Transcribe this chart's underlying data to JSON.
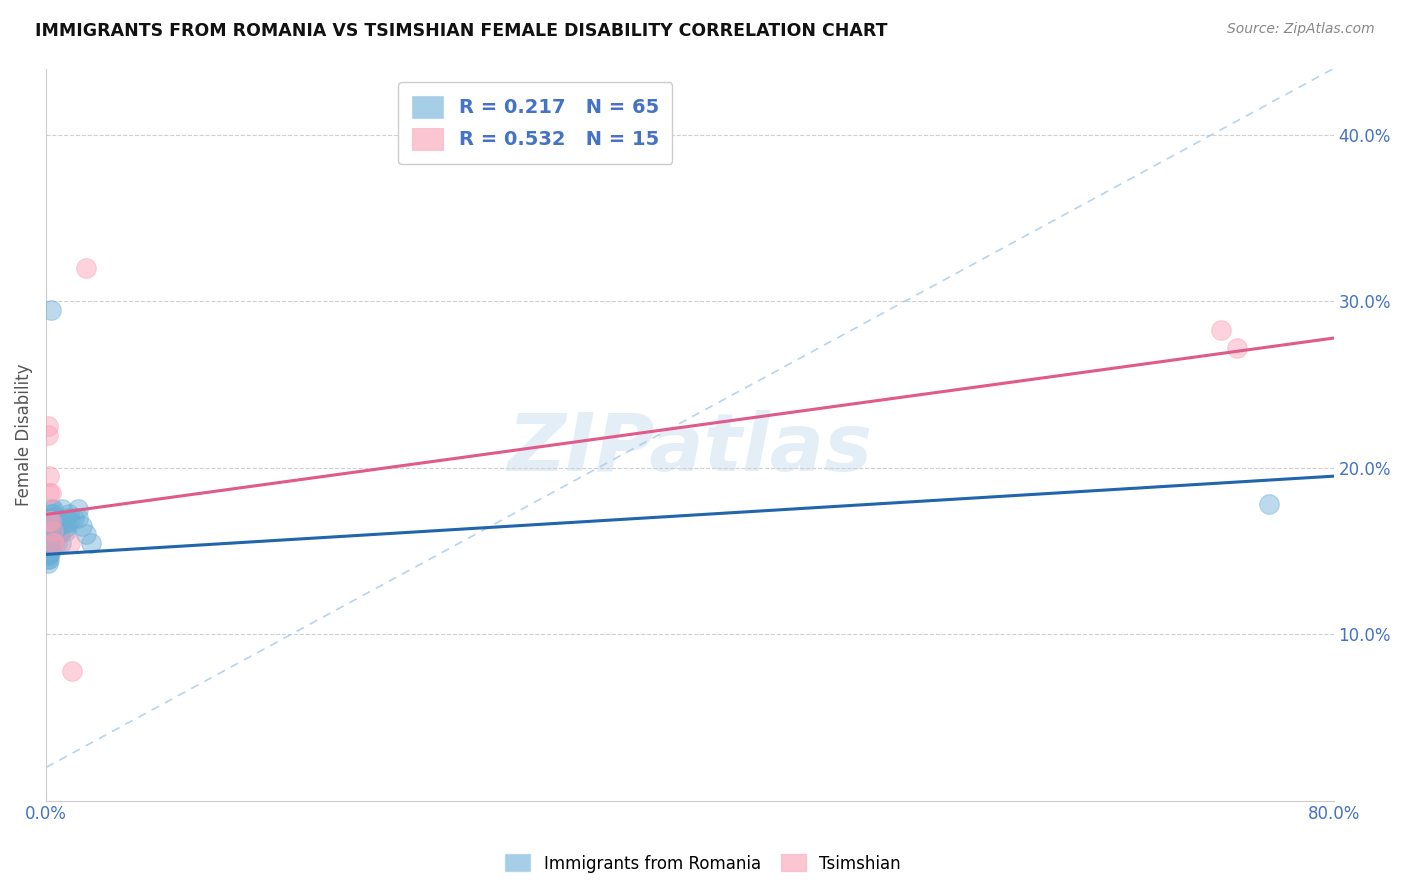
{
  "title": "IMMIGRANTS FROM ROMANIA VS TSIMSHIAN FEMALE DISABILITY CORRELATION CHART",
  "source": "Source: ZipAtlas.com",
  "ylabel": "Female Disability",
  "xlim": [
    0.0,
    0.8
  ],
  "ylim": [
    0.0,
    0.44
  ],
  "xtick_labels": [
    "0.0%",
    "",
    "",
    "",
    "",
    "",
    "",
    "",
    "80.0%"
  ],
  "xtick_values": [
    0.0,
    0.1,
    0.2,
    0.3,
    0.4,
    0.5,
    0.6,
    0.7,
    0.8
  ],
  "ytick_labels": [
    "10.0%",
    "20.0%",
    "30.0%",
    "40.0%"
  ],
  "ytick_values": [
    0.1,
    0.2,
    0.3,
    0.4
  ],
  "blue_R": 0.217,
  "blue_N": 65,
  "pink_R": 0.532,
  "pink_N": 15,
  "blue_color": "#6baed6",
  "pink_color": "#fa9fb5",
  "blue_line_color": "#2166ac",
  "pink_line_color": "#e05a8a",
  "diagonal_color": "#a8c8e8",
  "legend_label_blue": "Immigrants from Romania",
  "legend_label_pink": "Tsimshian",
  "watermark_text": "ZIPatlas",
  "blue_scatter_x": [
    0.001,
    0.001,
    0.001,
    0.001,
    0.001,
    0.001,
    0.001,
    0.001,
    0.001,
    0.001,
    0.002,
    0.002,
    0.002,
    0.002,
    0.002,
    0.002,
    0.002,
    0.002,
    0.002,
    0.002,
    0.003,
    0.003,
    0.003,
    0.003,
    0.003,
    0.003,
    0.003,
    0.003,
    0.003,
    0.003,
    0.004,
    0.004,
    0.004,
    0.004,
    0.004,
    0.004,
    0.004,
    0.005,
    0.005,
    0.005,
    0.005,
    0.006,
    0.006,
    0.006,
    0.007,
    0.007,
    0.008,
    0.008,
    0.009,
    0.01,
    0.01,
    0.011,
    0.012,
    0.012,
    0.013,
    0.014,
    0.015,
    0.017,
    0.02,
    0.022,
    0.025,
    0.028,
    0.003,
    0.76,
    0.02
  ],
  "blue_scatter_y": [
    0.155,
    0.152,
    0.148,
    0.145,
    0.15,
    0.148,
    0.153,
    0.147,
    0.156,
    0.143,
    0.155,
    0.16,
    0.15,
    0.148,
    0.165,
    0.152,
    0.17,
    0.145,
    0.158,
    0.162,
    0.163,
    0.168,
    0.155,
    0.175,
    0.158,
    0.162,
    0.15,
    0.17,
    0.165,
    0.172,
    0.172,
    0.168,
    0.16,
    0.155,
    0.175,
    0.165,
    0.17,
    0.165,
    0.158,
    0.155,
    0.168,
    0.162,
    0.16,
    0.17,
    0.168,
    0.155,
    0.16,
    0.168,
    0.155,
    0.165,
    0.175,
    0.163,
    0.17,
    0.162,
    0.165,
    0.172,
    0.168,
    0.17,
    0.175,
    0.165,
    0.16,
    0.155,
    0.295,
    0.178,
    0.17
  ],
  "pink_scatter_x": [
    0.001,
    0.001,
    0.002,
    0.002,
    0.002,
    0.003,
    0.003,
    0.004,
    0.004,
    0.005,
    0.015,
    0.016,
    0.025,
    0.73,
    0.74
  ],
  "pink_scatter_y": [
    0.22,
    0.225,
    0.195,
    0.185,
    0.168,
    0.185,
    0.168,
    0.162,
    0.155,
    0.155,
    0.155,
    0.078,
    0.32,
    0.283,
    0.272
  ],
  "blue_line_x0": 0.0,
  "blue_line_x1": 0.8,
  "blue_line_y0": 0.148,
  "blue_line_y1": 0.195,
  "pink_line_x0": 0.0,
  "pink_line_x1": 0.8,
  "pink_line_y0": 0.172,
  "pink_line_y1": 0.278
}
